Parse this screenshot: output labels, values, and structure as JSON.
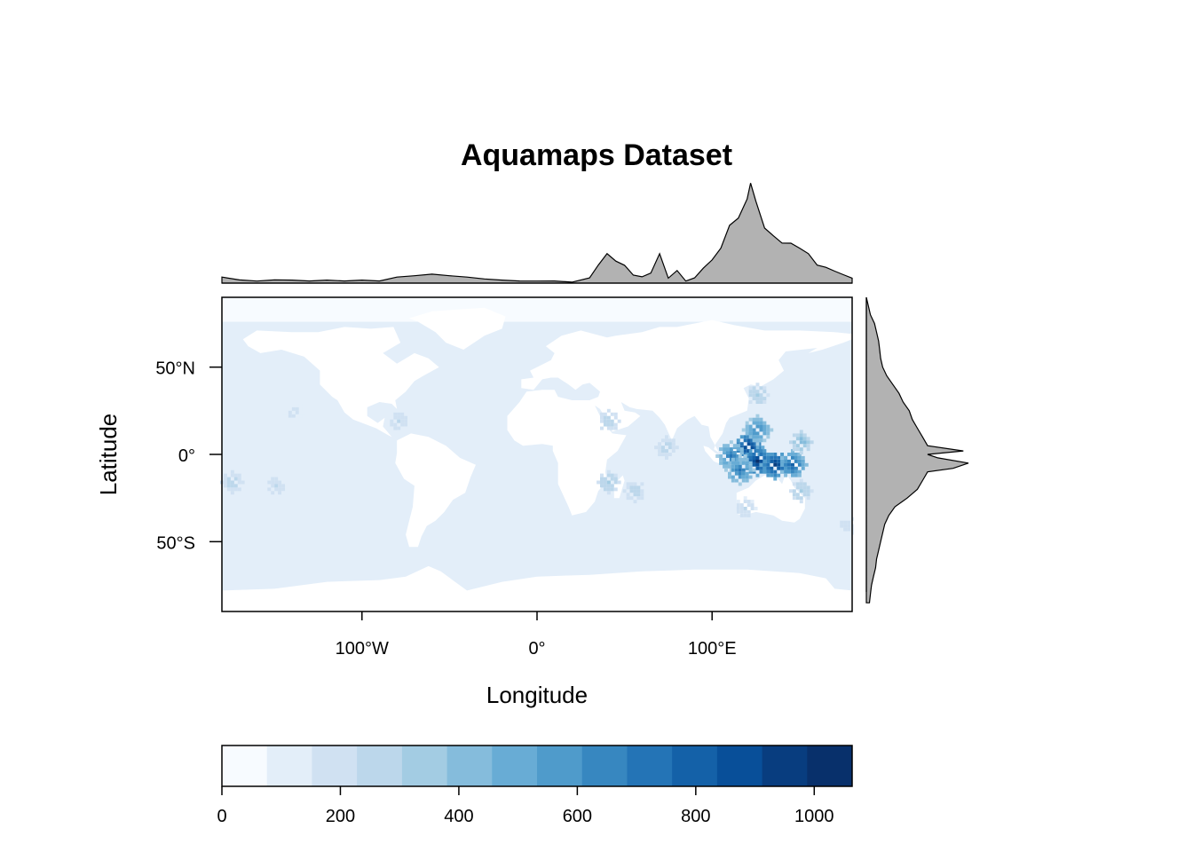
{
  "chart_data": {
    "type": "heatmap",
    "title": "Aquamaps Dataset",
    "xlabel": "Longitude",
    "ylabel": "Latitude",
    "xlim": [
      -180,
      180
    ],
    "ylim": [
      -90,
      90
    ],
    "x_ticks": [
      {
        "value": -100,
        "label": "100°W"
      },
      {
        "value": 0,
        "label": "0°"
      },
      {
        "value": 100,
        "label": "100°E"
      }
    ],
    "y_ticks": [
      {
        "value": 50,
        "label": "50°N"
      },
      {
        "value": 0,
        "label": "0°"
      },
      {
        "value": -50,
        "label": "50°S"
      }
    ],
    "colorbar": {
      "range": [
        0,
        1064
      ],
      "breaks": [
        0,
        76,
        152,
        228,
        304,
        380,
        456,
        532,
        608,
        684,
        760,
        836,
        912,
        988,
        1064
      ],
      "colors": [
        "#f7fbff",
        "#e3eef9",
        "#d0e1f2",
        "#bcd7eb",
        "#a3cce3",
        "#85bcdc",
        "#68acd5",
        "#4f9bcb",
        "#3787c0",
        "#2474b6",
        "#1461a8",
        "#084f99",
        "#083d7f",
        "#08306b"
      ],
      "ticks": [
        {
          "value": 0,
          "label": "0"
        },
        {
          "value": 200,
          "label": "200"
        },
        {
          "value": 400,
          "label": "400"
        },
        {
          "value": 600,
          "label": "600"
        },
        {
          "value": 800,
          "label": "800"
        },
        {
          "value": 1000,
          "label": "1000"
        }
      ]
    },
    "ocean_background_value": 95,
    "polar_ocean_value": 40,
    "hotspots": [
      {
        "lon": 120,
        "lat": 5,
        "value": 1000
      },
      {
        "lon": 125,
        "lat": -3,
        "value": 1000
      },
      {
        "lon": 135,
        "lat": -5,
        "value": 950
      },
      {
        "lon": 145,
        "lat": -5,
        "value": 800
      },
      {
        "lon": 110,
        "lat": 0,
        "value": 700
      },
      {
        "lon": 125,
        "lat": 15,
        "value": 650
      },
      {
        "lon": 115,
        "lat": -8,
        "value": 700
      },
      {
        "lon": 150,
        "lat": 8,
        "value": 450
      },
      {
        "lon": 40,
        "lat": -15,
        "value": 350
      },
      {
        "lon": 55,
        "lat": -20,
        "value": 300
      },
      {
        "lon": 73,
        "lat": 5,
        "value": 300
      },
      {
        "lon": 40,
        "lat": 20,
        "value": 300
      },
      {
        "lon": -80,
        "lat": 20,
        "value": 250
      },
      {
        "lon": -175,
        "lat": -15,
        "value": 300
      },
      {
        "lon": -150,
        "lat": -17,
        "value": 250
      },
      {
        "lon": -140,
        "lat": 25,
        "value": 200
      },
      {
        "lon": 125,
        "lat": 35,
        "value": 350
      },
      {
        "lon": 150,
        "lat": -20,
        "value": 350
      },
      {
        "lon": 118,
        "lat": -30,
        "value": 250
      },
      {
        "lon": 175,
        "lat": -40,
        "value": 200
      }
    ],
    "marginal_longitude_density": {
      "x": [
        -180,
        -170,
        -160,
        -150,
        -140,
        -130,
        -120,
        -110,
        -100,
        -90,
        -80,
        -70,
        -60,
        -50,
        -40,
        -30,
        -20,
        -10,
        0,
        10,
        20,
        30,
        35,
        40,
        45,
        50,
        55,
        60,
        65,
        70,
        75,
        80,
        85,
        90,
        95,
        100,
        105,
        110,
        115,
        120,
        122,
        125,
        130,
        135,
        140,
        145,
        150,
        155,
        160,
        165,
        170,
        175,
        180
      ],
      "y": [
        0.06,
        0.03,
        0.02,
        0.03,
        0.03,
        0.02,
        0.03,
        0.02,
        0.03,
        0.02,
        0.06,
        0.07,
        0.09,
        0.07,
        0.06,
        0.04,
        0.03,
        0.02,
        0.02,
        0.02,
        0.01,
        0.05,
        0.18,
        0.28,
        0.22,
        0.17,
        0.08,
        0.06,
        0.1,
        0.28,
        0.05,
        0.12,
        0.02,
        0.05,
        0.15,
        0.22,
        0.35,
        0.55,
        0.65,
        0.8,
        1.0,
        0.78,
        0.55,
        0.45,
        0.4,
        0.38,
        0.35,
        0.28,
        0.18,
        0.15,
        0.12,
        0.08,
        0.05
      ]
    },
    "marginal_latitude_density": {
      "y": [
        90,
        85,
        80,
        75,
        70,
        65,
        60,
        55,
        50,
        45,
        40,
        35,
        30,
        25,
        20,
        15,
        10,
        5,
        2,
        0,
        -2,
        -5,
        -8,
        -10,
        -15,
        -20,
        -25,
        -30,
        -35,
        -40,
        -45,
        -50,
        -55,
        -60,
        -65,
        -70,
        -75,
        -80,
        -85
      ],
      "x": [
        0.0,
        0.02,
        0.04,
        0.08,
        0.1,
        0.12,
        0.13,
        0.14,
        0.16,
        0.2,
        0.26,
        0.32,
        0.36,
        0.42,
        0.45,
        0.5,
        0.55,
        0.6,
        0.95,
        0.6,
        0.7,
        1.0,
        0.85,
        0.6,
        0.55,
        0.5,
        0.4,
        0.28,
        0.22,
        0.18,
        0.16,
        0.14,
        0.12,
        0.1,
        0.09,
        0.07,
        0.05,
        0.04,
        0.03
      ]
    }
  }
}
